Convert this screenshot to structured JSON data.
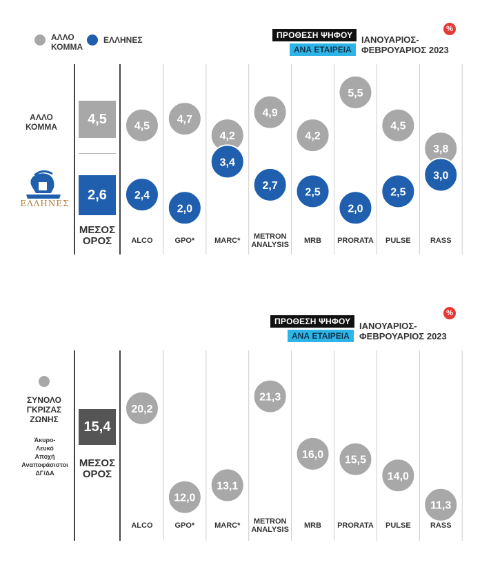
{
  "colors": {
    "grey": "#a8a8a8",
    "blue": "#1f5fad",
    "badge_red": "#e53935",
    "avg_grey_box": "#555555"
  },
  "legend": {
    "other": "ΑΛΛΟ ΚΟΜΜΑ",
    "other_line1": "ΑΛΛΟ",
    "other_line2": "ΚΟΜΜΑ",
    "ellines": "ΕΛΛΗΝΕΣ"
  },
  "header": {
    "badge_black": "ΠΡΟΘΕΣΗ ΨΗΦΟΥ",
    "badge_blue": "ΑΝΑ ΕΤΑΙΡΕΙΑ",
    "period_line1": "ΙΑΝΟΥΑΡΙΟΣ-",
    "period_line2": "ΦΕΒΡΟΥΑΡΙΟΣ 2023",
    "percent_icon": "%"
  },
  "logo": {
    "text": "ΕΛΛΗΝΕΣ"
  },
  "panel1": {
    "row_label_line1": "ΑΛΛΟ",
    "row_label_line2": "ΚΟΜΜΑ",
    "avg_label_line1": "ΜΕΣΟΣ",
    "avg_label_line2": "ΟΡΟΣ",
    "avg_other": "4,5",
    "avg_ellines": "2,6"
  },
  "panel2": {
    "group_line1": "ΣΥΝΟΛΟ",
    "group_line2": "ΓΚΡΙΖΑΣ",
    "group_line3": "ΖΩΝΗΣ",
    "detail_line1": "Άκυρο-",
    "detail_line2": "Λευκό",
    "detail_line3": "Αποχή",
    "detail_line4": "Αναποφάσιστοι",
    "detail_line5": "ΔΓ/ΔΑ",
    "avg_label_line1": "ΜΕΣΟΣ",
    "avg_label_line2": "ΟΡΟΣ",
    "avg_value": "15,4"
  },
  "chart_data": [
    {
      "type": "scatter",
      "categories": [
        "ALCO",
        "GPO*",
        "MARC*",
        "METRON ANALYSIS",
        "MRB",
        "PRORATA",
        "PULSE",
        "RASS"
      ],
      "series": [
        {
          "name": "ΑΛΛΟ ΚΟΜΜΑ",
          "values": [
            4.5,
            4.7,
            4.2,
            4.9,
            4.2,
            5.5,
            4.5,
            3.8
          ]
        },
        {
          "name": "ΕΛΛΗΝΕΣ",
          "values": [
            2.4,
            2.0,
            3.4,
            2.7,
            2.5,
            2.0,
            2.5,
            3.0
          ]
        }
      ],
      "average": {
        "ΑΛΛΟ ΚΟΜΜΑ": 4.5,
        "ΕΛΛΗΝΕΣ": 2.6
      },
      "ylim": [
        1.4,
        6.0
      ]
    },
    {
      "type": "scatter",
      "categories": [
        "ALCO",
        "GPO*",
        "MARC*",
        "METRON ANALYSIS",
        "MRB",
        "PRORATA",
        "PULSE",
        "RASS"
      ],
      "series": [
        {
          "name": "ΣΥΝΟΛΟ ΓΚΡΙΖΑΣ ΖΩΝΗΣ",
          "values": [
            20.2,
            12.0,
            13.1,
            21.3,
            16.0,
            15.5,
            14.0,
            11.3
          ]
        }
      ],
      "average": 15.4,
      "ylim": [
        9.5,
        23.5
      ]
    }
  ]
}
